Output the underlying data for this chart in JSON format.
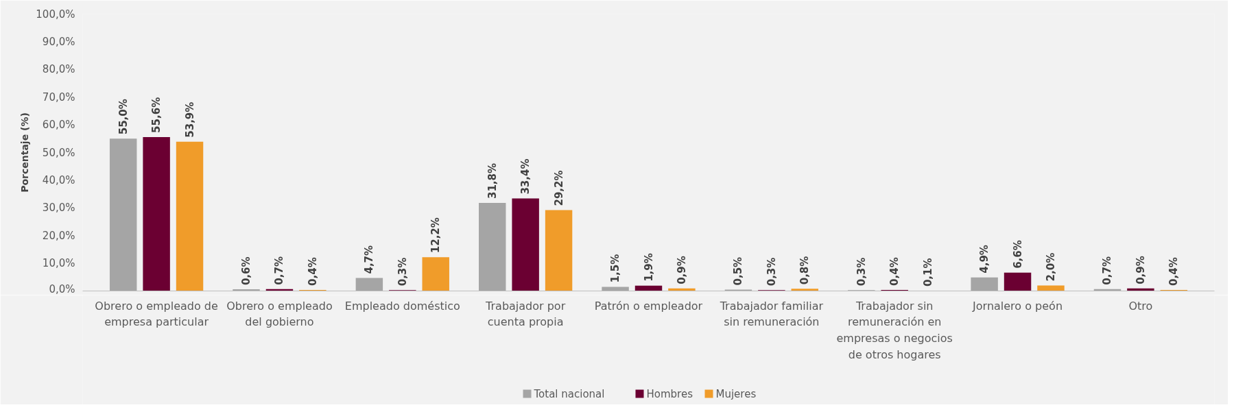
{
  "chart_data": {
    "type": "bar",
    "ylabel": "Porcentaje (%)",
    "categories": [
      "Obrero o empleado de empresa particular",
      "Obrero o empleado del gobierno",
      "Empleado doméstico",
      "Trabajador por cuenta propia",
      "Patrón o empleador",
      "Trabajador familiar sin remuneración",
      "Trabajador sin remuneración en empresas o negocios de otros hogares",
      "Jornalero o peón",
      "Otro"
    ],
    "series": [
      {
        "name": "Total nacional",
        "color": "#a5a5a5",
        "values": [
          55.0,
          0.6,
          4.7,
          31.8,
          1.5,
          0.5,
          0.3,
          4.9,
          0.7
        ],
        "value_labels": [
          "55,0%",
          "0,6%",
          "4,7%",
          "31,8%",
          "1,5%",
          "0,5%",
          "0,3%",
          "4,9%",
          "0,7%"
        ]
      },
      {
        "name": "Hombres",
        "color": "#6b0032",
        "values": [
          55.6,
          0.7,
          0.3,
          33.4,
          1.9,
          0.3,
          0.4,
          6.6,
          0.9
        ],
        "value_labels": [
          "55,6%",
          "0,7%",
          "0,3%",
          "33,4%",
          "1,9%",
          "0,3%",
          "0,4%",
          "6,6%",
          "0,9%"
        ]
      },
      {
        "name": "Mujeres",
        "color": "#f09c2a",
        "values": [
          53.9,
          0.4,
          12.2,
          29.2,
          0.9,
          0.8,
          0.1,
          2.0,
          0.4
        ],
        "value_labels": [
          "53,9%",
          "0,4%",
          "12,2%",
          "29,2%",
          "0,9%",
          "0,8%",
          "0,1%",
          "2,0%",
          "0,4%"
        ]
      }
    ],
    "ylim": [
      0,
      100
    ],
    "yticks": [
      {
        "value": 0,
        "label": "0,0%"
      },
      {
        "value": 10,
        "label": "10,0%"
      },
      {
        "value": 20,
        "label": "20,0%"
      },
      {
        "value": 30,
        "label": "30,0%"
      },
      {
        "value": 40,
        "label": "40,0%"
      },
      {
        "value": 50,
        "label": "50,0%"
      },
      {
        "value": 60,
        "label": "60,0%"
      },
      {
        "value": 70,
        "label": "70,0%"
      },
      {
        "value": 80,
        "label": "80,0%"
      },
      {
        "value": 90,
        "label": "90,0%"
      },
      {
        "value": 100,
        "label": "100,0%"
      }
    ],
    "grid": false,
    "legend": "bottom"
  }
}
